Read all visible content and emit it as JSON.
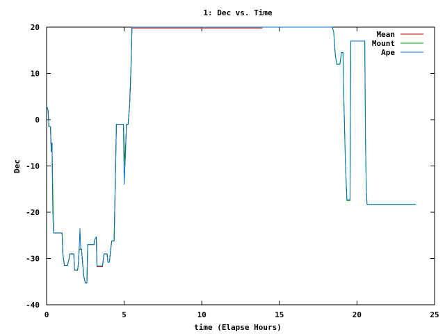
{
  "chart_data": {
    "type": "line",
    "title": "1: Dec vs. Time",
    "xlabel": "time (Elapse Hours)",
    "ylabel": "Dec",
    "xlim": [
      0,
      25
    ],
    "ylim": [
      -40,
      20
    ],
    "xticks": [
      0,
      5,
      10,
      15,
      20,
      25
    ],
    "yticks": [
      -40,
      -30,
      -20,
      -10,
      0,
      10,
      20
    ],
    "grid": false,
    "legend_position": "top-right",
    "series": [
      {
        "name": "Mean",
        "color": "#cc0000",
        "points": [
          [
            0,
            3
          ],
          [
            0.1,
            2
          ],
          [
            0.15,
            -1.5
          ],
          [
            0.25,
            -1.5
          ],
          [
            0.3,
            -7
          ],
          [
            0.35,
            -5
          ],
          [
            0.4,
            -18
          ],
          [
            0.45,
            -24.5
          ],
          [
            1.0,
            -24.5
          ],
          [
            1.05,
            -29
          ],
          [
            1.15,
            -31.5
          ],
          [
            1.35,
            -31.5
          ],
          [
            1.45,
            -30
          ],
          [
            1.5,
            -29
          ],
          [
            1.75,
            -29
          ],
          [
            1.8,
            -32.5
          ],
          [
            2.0,
            -32.5
          ],
          [
            2.05,
            -31
          ],
          [
            2.1,
            -28
          ],
          [
            2.25,
            -28
          ],
          [
            2.3,
            -30
          ],
          [
            2.4,
            -34
          ],
          [
            2.5,
            -35.3
          ],
          [
            2.6,
            -35.3
          ],
          [
            2.65,
            -27
          ],
          [
            3.05,
            -27
          ],
          [
            3.1,
            -26
          ],
          [
            3.2,
            -25.3
          ],
          [
            3.25,
            -31.8
          ],
          [
            3.6,
            -31.8
          ],
          [
            3.7,
            -29
          ],
          [
            3.9,
            -29
          ],
          [
            3.95,
            -30.8
          ],
          [
            4.05,
            -30.8
          ],
          [
            4.1,
            -29
          ],
          [
            4.2,
            -26.2
          ],
          [
            4.35,
            -26.2
          ],
          [
            4.45,
            -10
          ],
          [
            4.5,
            -1
          ],
          [
            4.95,
            -1
          ],
          [
            5.05,
            -10
          ],
          [
            5.15,
            -1
          ],
          [
            5.25,
            -1
          ],
          [
            5.35,
            3
          ],
          [
            5.45,
            12
          ],
          [
            5.5,
            19.8
          ],
          [
            13.9,
            19.8
          ]
        ]
      },
      {
        "name": "Mount",
        "color": "#00a000",
        "points": [
          [
            0,
            3
          ],
          [
            0.1,
            2
          ],
          [
            0.15,
            -1.5
          ],
          [
            0.25,
            -1.5
          ],
          [
            0.3,
            -7
          ],
          [
            0.35,
            -5
          ],
          [
            0.4,
            -15
          ],
          [
            0.45,
            -24.5
          ],
          [
            1.0,
            -24.5
          ],
          [
            1.05,
            -29
          ],
          [
            1.15,
            -31.5
          ],
          [
            1.35,
            -31.5
          ],
          [
            1.45,
            -30
          ],
          [
            1.5,
            -29
          ],
          [
            1.75,
            -29
          ],
          [
            1.8,
            -32.5
          ],
          [
            2.0,
            -32.5
          ],
          [
            2.05,
            -31
          ],
          [
            2.1,
            -28
          ],
          [
            2.25,
            -28
          ],
          [
            2.3,
            -30
          ],
          [
            2.4,
            -34
          ],
          [
            2.5,
            -35.3
          ],
          [
            2.6,
            -35.3
          ],
          [
            2.65,
            -27
          ],
          [
            3.05,
            -27
          ],
          [
            3.1,
            -26
          ],
          [
            3.2,
            -25.3
          ],
          [
            3.25,
            -31.6
          ],
          [
            3.6,
            -31.6
          ],
          [
            3.7,
            -29
          ],
          [
            3.9,
            -29
          ],
          [
            3.95,
            -30.8
          ],
          [
            4.05,
            -30.8
          ],
          [
            4.1,
            -29
          ],
          [
            4.2,
            -26.2
          ],
          [
            4.35,
            -26.2
          ],
          [
            4.45,
            -10
          ],
          [
            4.5,
            -1
          ],
          [
            4.95,
            -1
          ],
          [
            5.05,
            -10
          ],
          [
            5.15,
            -1
          ],
          [
            5.25,
            -1
          ],
          [
            5.35,
            3
          ],
          [
            5.45,
            12
          ],
          [
            5.5,
            20
          ],
          [
            18.4,
            20
          ],
          [
            18.5,
            19
          ],
          [
            18.6,
            14
          ],
          [
            18.7,
            12
          ],
          [
            18.9,
            12
          ],
          [
            19.0,
            14.5
          ],
          [
            19.1,
            14.5
          ],
          [
            19.15,
            5
          ],
          [
            19.25,
            -9
          ],
          [
            19.35,
            -17.5
          ],
          [
            19.55,
            -17.5
          ],
          [
            19.6,
            17
          ],
          [
            20.5,
            17
          ],
          [
            20.55,
            -5
          ],
          [
            20.6,
            -15
          ],
          [
            20.65,
            -18.3
          ],
          [
            23.8,
            -18.3
          ]
        ]
      },
      {
        "name": "Ape",
        "color": "#0070c0",
        "points": [
          [
            0,
            3
          ],
          [
            0.1,
            2
          ],
          [
            0.15,
            -1.5
          ],
          [
            0.25,
            -1.5
          ],
          [
            0.3,
            -7
          ],
          [
            0.35,
            -5
          ],
          [
            0.4,
            -20
          ],
          [
            0.45,
            -24.5
          ],
          [
            1.0,
            -24.5
          ],
          [
            1.05,
            -29
          ],
          [
            1.15,
            -31.5
          ],
          [
            1.35,
            -31.5
          ],
          [
            1.45,
            -30
          ],
          [
            1.5,
            -29
          ],
          [
            1.75,
            -29
          ],
          [
            1.8,
            -32.5
          ],
          [
            2.0,
            -32.5
          ],
          [
            2.05,
            -31
          ],
          [
            2.1,
            -28
          ],
          [
            2.15,
            -23.5
          ],
          [
            2.2,
            -28
          ],
          [
            2.25,
            -28
          ],
          [
            2.3,
            -30
          ],
          [
            2.4,
            -34
          ],
          [
            2.5,
            -35.3
          ],
          [
            2.6,
            -35.3
          ],
          [
            2.65,
            -27
          ],
          [
            3.05,
            -27
          ],
          [
            3.1,
            -26
          ],
          [
            3.2,
            -25.3
          ],
          [
            3.25,
            -31.6
          ],
          [
            3.6,
            -31.6
          ],
          [
            3.7,
            -29
          ],
          [
            3.9,
            -29
          ],
          [
            3.95,
            -30.8
          ],
          [
            4.05,
            -30.8
          ],
          [
            4.1,
            -29
          ],
          [
            4.2,
            -26.2
          ],
          [
            4.35,
            -26.2
          ],
          [
            4.45,
            -10
          ],
          [
            4.5,
            -1
          ],
          [
            4.95,
            -1
          ],
          [
            5.0,
            -14
          ],
          [
            5.05,
            -10
          ],
          [
            5.15,
            -1
          ],
          [
            5.25,
            -1
          ],
          [
            5.35,
            3
          ],
          [
            5.45,
            12
          ],
          [
            5.5,
            20
          ],
          [
            18.4,
            20
          ],
          [
            18.5,
            19
          ],
          [
            18.6,
            14
          ],
          [
            18.7,
            12
          ],
          [
            18.9,
            12
          ],
          [
            19.0,
            14.5
          ],
          [
            19.1,
            14.5
          ],
          [
            19.15,
            5
          ],
          [
            19.25,
            -9
          ],
          [
            19.35,
            -17.3
          ],
          [
            19.55,
            -17.3
          ],
          [
            19.6,
            17
          ],
          [
            20.5,
            17
          ],
          [
            20.55,
            -5
          ],
          [
            20.6,
            -15
          ],
          [
            20.65,
            -18.3
          ],
          [
            23.8,
            -18.3
          ]
        ]
      }
    ]
  }
}
